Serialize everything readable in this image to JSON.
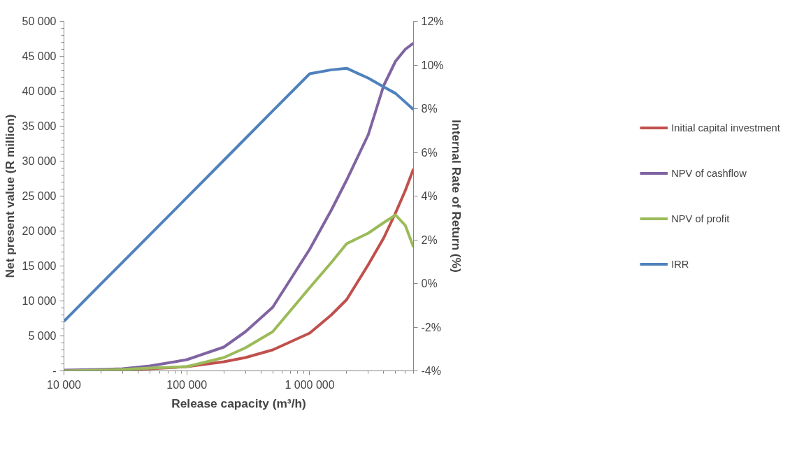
{
  "chart_data": {
    "type": "line",
    "xlabel": "Release capacity (m³/h)",
    "ylabel": "Net present value (R million)",
    "y2label": "Internal Rate of Return (%)",
    "log": "x",
    "xlim": [
      10000,
      7000000
    ],
    "xticks": [
      {
        "value": 10000,
        "label": "10 000"
      },
      {
        "value": 100000,
        "label": "100 000"
      },
      {
        "value": 1000000,
        "label": "1 000 000"
      }
    ],
    "ylim": [
      0,
      50000
    ],
    "yticks": [
      {
        "value": 0,
        "label": "-"
      },
      {
        "value": 5000,
        "label": "5 000"
      },
      {
        "value": 10000,
        "label": "10 000"
      },
      {
        "value": 15000,
        "label": "15 000"
      },
      {
        "value": 20000,
        "label": "20 000"
      },
      {
        "value": 25000,
        "label": "25 000"
      },
      {
        "value": 30000,
        "label": "30 000"
      },
      {
        "value": 35000,
        "label": "35 000"
      },
      {
        "value": 40000,
        "label": "40 000"
      },
      {
        "value": 45000,
        "label": "45 000"
      },
      {
        "value": 50000,
        "label": "50 000"
      }
    ],
    "y2lim": [
      -4,
      12
    ],
    "y2ticks": [
      {
        "value": -4,
        "label": "-4%"
      },
      {
        "value": -2,
        "label": "-2%"
      },
      {
        "value": 0,
        "label": "0%"
      },
      {
        "value": 2,
        "label": "2%"
      },
      {
        "value": 4,
        "label": "4%"
      },
      {
        "value": 6,
        "label": "6%"
      },
      {
        "value": 8,
        "label": "8%"
      },
      {
        "value": 10,
        "label": "10%"
      },
      {
        "value": 12,
        "label": "12%"
      }
    ],
    "x": [
      10000,
      20000,
      30000,
      50000,
      100000,
      200000,
      300000,
      500000,
      1000000,
      1500000,
      2000000,
      3000000,
      4000000,
      5000000,
      6000000,
      7000000
    ],
    "grid": false,
    "legend": "right",
    "marker": "none",
    "line_style": "solid",
    "series": [
      {
        "name": "Initial capital investment",
        "color": "#c0504d",
        "values": [
          0,
          100,
          200,
          300,
          600,
          1300,
          1900,
          3000,
          5400,
          8000,
          10200,
          15200,
          19000,
          22600,
          25800,
          28900
        ]
      },
      {
        "name": "NPV of cashflow",
        "color": "#8064a2",
        "values": [
          100,
          200,
          300,
          700,
          1600,
          3400,
          5600,
          9100,
          17400,
          23000,
          27300,
          33800,
          40800,
          44300,
          46000,
          46900
        ]
      },
      {
        "name": "NPV of profit",
        "color": "#9bbb59",
        "values": [
          0,
          100,
          200,
          400,
          600,
          1900,
          3300,
          5600,
          11900,
          15500,
          18200,
          19700,
          21200,
          22300,
          20800,
          17700
        ]
      },
      {
        "name": "IRR",
        "color": "#4f81bd",
        "axis": "y2",
        "values": [
          -1.73,
          -0.02,
          0.97,
          2.23,
          3.93,
          5.64,
          6.64,
          7.9,
          9.6,
          9.78,
          9.85,
          9.4,
          9.0,
          8.7,
          8.3,
          7.96
        ]
      }
    ]
  }
}
